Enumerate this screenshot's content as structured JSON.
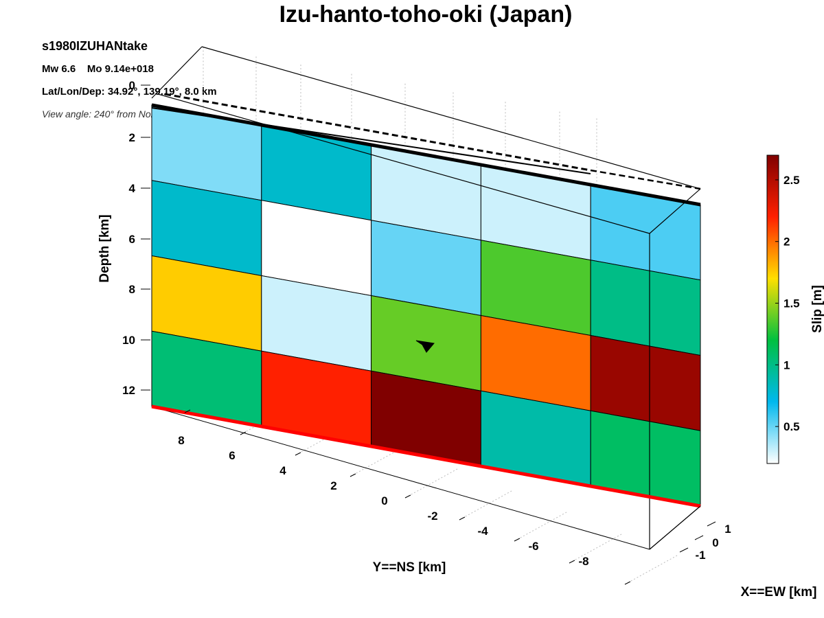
{
  "title": "Izu-hanto-toho-oki (Japan)",
  "info": {
    "event_id": "s1980IZUHANtake",
    "magnitude": "Mw 6.6    Mo 9.14e+018",
    "location": "Lat/Lon/Dep: 34.92°, 139.19°, 8.0 km",
    "view_angle": "View angle: 240° from North"
  },
  "chart_data": {
    "type": "heatmap",
    "title": "Izu-hanto-toho-oki (Japan)",
    "ylabel": "Depth [km]",
    "ns_label": "Y==NS [km]",
    "ew_label": "X==EW [km]",
    "depth_ticks": [
      0,
      2,
      4,
      6,
      8,
      10,
      12
    ],
    "depth_range": [
      0,
      12.8
    ],
    "ns_ticks": [
      8,
      6,
      4,
      2,
      0,
      -2,
      -4,
      -6,
      -8
    ],
    "ew_ticks": [
      1,
      0,
      -1
    ],
    "colorbar": {
      "label": "Slip [m]",
      "ticks": [
        0.5,
        1,
        1.5,
        2,
        2.5
      ],
      "range": [
        0.2,
        2.7
      ],
      "colormap": [
        "#ffffff",
        "#00b8ee",
        "#00c040",
        "#ffdf00",
        "#ff2000",
        "#800000"
      ]
    },
    "slip_grid_m": [
      [
        0.45,
        0.8,
        0.3,
        0.3,
        0.55
      ],
      [
        0.8,
        0.2,
        0.5,
        1.35,
        1.0
      ],
      [
        1.75,
        0.3,
        1.4,
        2.0,
        2.6
      ],
      [
        1.05,
        2.2,
        2.7,
        0.9,
        1.1
      ]
    ],
    "hypocenter_marker": "star"
  },
  "colors": {
    "rupture_top": "#000000",
    "fault_bottom": "#ff0000"
  }
}
